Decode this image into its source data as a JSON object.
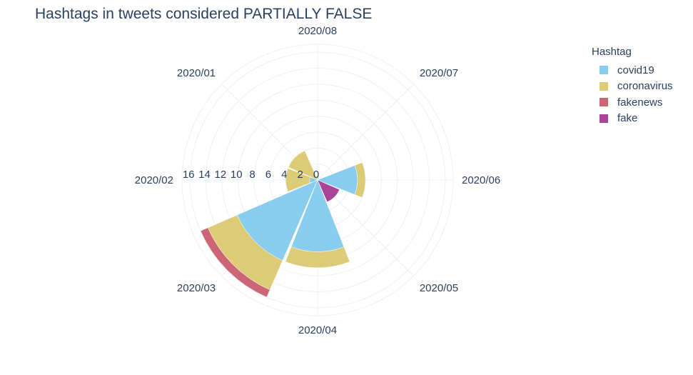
{
  "chart_data": {
    "type": "barpolar",
    "title": "Hashtags in tweets considered PARTIALLY FALSE",
    "angular_categories": [
      "2020/06",
      "2020/07",
      "2020/08",
      "2020/01",
      "2020/02",
      "2020/03",
      "2020/04",
      "2020/05"
    ],
    "radial_ticks": [
      "0",
      "2",
      "4",
      "6",
      "8",
      "10",
      "12",
      "14",
      "16"
    ],
    "radial_range": [
      0,
      17
    ],
    "legend_title": "Hashtag",
    "legend_position": "top-right",
    "series": [
      {
        "name": "covid19",
        "color": "#88CCEE",
        "values": {
          "2020/06": 5,
          "2020/07": 0,
          "2020/08": 0.5,
          "2020/01": 0,
          "2020/02": 1,
          "2020/03": 11,
          "2020/04": 9,
          "2020/05": 0
        }
      },
      {
        "name": "coronavirus",
        "color": "#DDCC77",
        "values": {
          "2020/06": 1,
          "2020/07": 0,
          "2020/08": 0,
          "2020/01": 4,
          "2020/02": 3,
          "2020/03": 4,
          "2020/04": 2,
          "2020/05": 0
        }
      },
      {
        "name": "fakenews",
        "color": "#CC6677",
        "values": {
          "2020/06": 0,
          "2020/07": 0,
          "2020/08": 0,
          "2020/01": 0,
          "2020/02": 0,
          "2020/03": 1,
          "2020/04": 0,
          "2020/05": 0
        }
      },
      {
        "name": "fake",
        "color": "#AA4499",
        "values": {
          "2020/06": 0,
          "2020/07": 0,
          "2020/08": 0,
          "2020/01": 0,
          "2020/02": 0,
          "2020/03": 0,
          "2020/04": 0,
          "2020/05": 3
        }
      }
    ]
  }
}
